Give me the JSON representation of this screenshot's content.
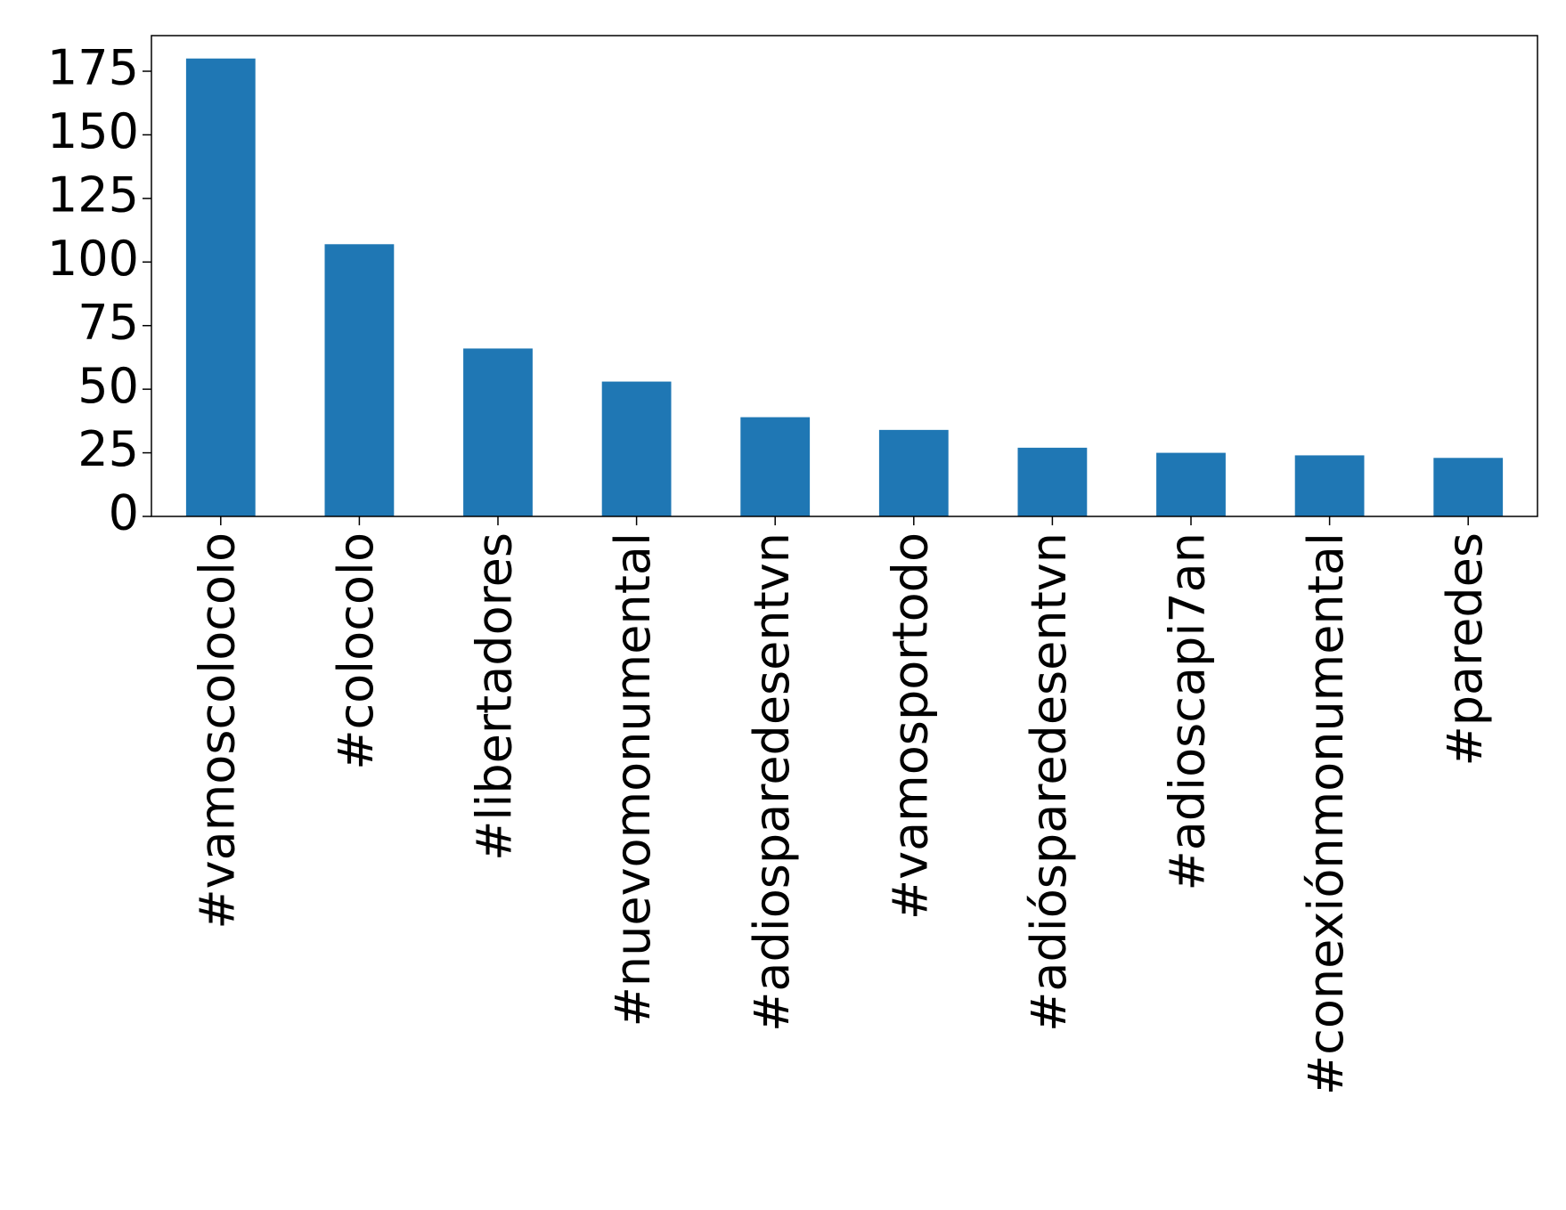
{
  "chart_data": {
    "type": "bar",
    "title": "",
    "xlabel": "",
    "ylabel": "",
    "categories": [
      "#vamoscolocolo",
      "#colocolo",
      "#libertadores",
      "#nuevomonumental",
      "#adiosparedesentvn",
      "#vamosportodo",
      "#adióspa­redesentvn",
      "#adioscapi7an",
      "#conexiónmonumental",
      "#paredes"
    ],
    "values": [
      180,
      107,
      66,
      53,
      39,
      34,
      27,
      25,
      24,
      23
    ],
    "ylim": [
      0,
      189
    ],
    "yticks": [
      0,
      25,
      50,
      75,
      100,
      125,
      150,
      175
    ],
    "ytick_labels": [
      "0",
      "25",
      "50",
      "75",
      "100",
      "125",
      "150",
      "175"
    ],
    "grid": false,
    "legend": "none",
    "colors": {
      "bar": "#1f77b4",
      "axis": "#000000",
      "background": "#ffffff"
    }
  }
}
